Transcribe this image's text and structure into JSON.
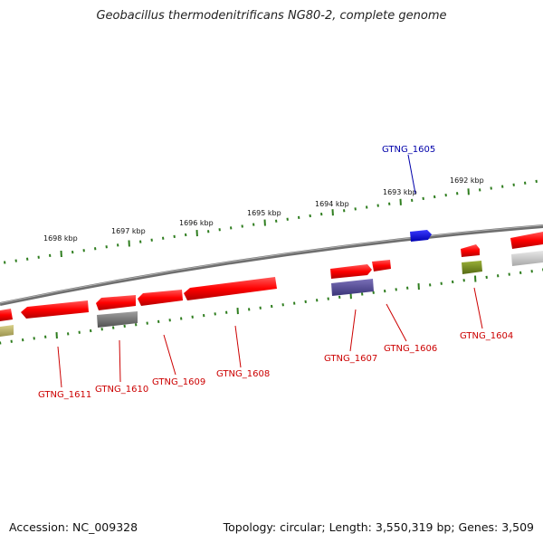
{
  "title": "Geobacillus thermodenitrificans NG80-2, complete genome",
  "footer": {
    "accession": "Accession: NC_009328",
    "summary": "Topology: circular; Length: 3,550,319 bp; Genes: 3,509"
  },
  "colors": {
    "backbone": "#808080",
    "ticks": "#2e7d1e",
    "red_gene": "#ff0000",
    "label_red": "#cc0000",
    "label_blue": "#0000aa"
  },
  "kbp_ticks": [
    "1698 kbp",
    "1697 kbp",
    "1696 kbp",
    "1695 kbp",
    "1694 kbp",
    "1693 kbp",
    "1692 kbp"
  ],
  "labels": [
    {
      "id": "GTNG_1605",
      "text": "GTNG_1605",
      "color": "blue"
    },
    {
      "id": "GTNG_1604",
      "text": "GTNG_1604",
      "color": "red"
    },
    {
      "id": "GTNG_1606",
      "text": "GTNG_1606",
      "color": "red"
    },
    {
      "id": "GTNG_1607",
      "text": "GTNG_1607",
      "color": "red"
    },
    {
      "id": "GTNG_1608",
      "text": "GTNG_1608",
      "color": "red"
    },
    {
      "id": "GTNG_1609",
      "text": "GTNG_1609",
      "color": "red"
    },
    {
      "id": "GTNG_1610",
      "text": "GTNG_1610",
      "color": "red"
    },
    {
      "id": "GTNG_1611",
      "text": "GTNG_1611",
      "color": "red"
    }
  ]
}
